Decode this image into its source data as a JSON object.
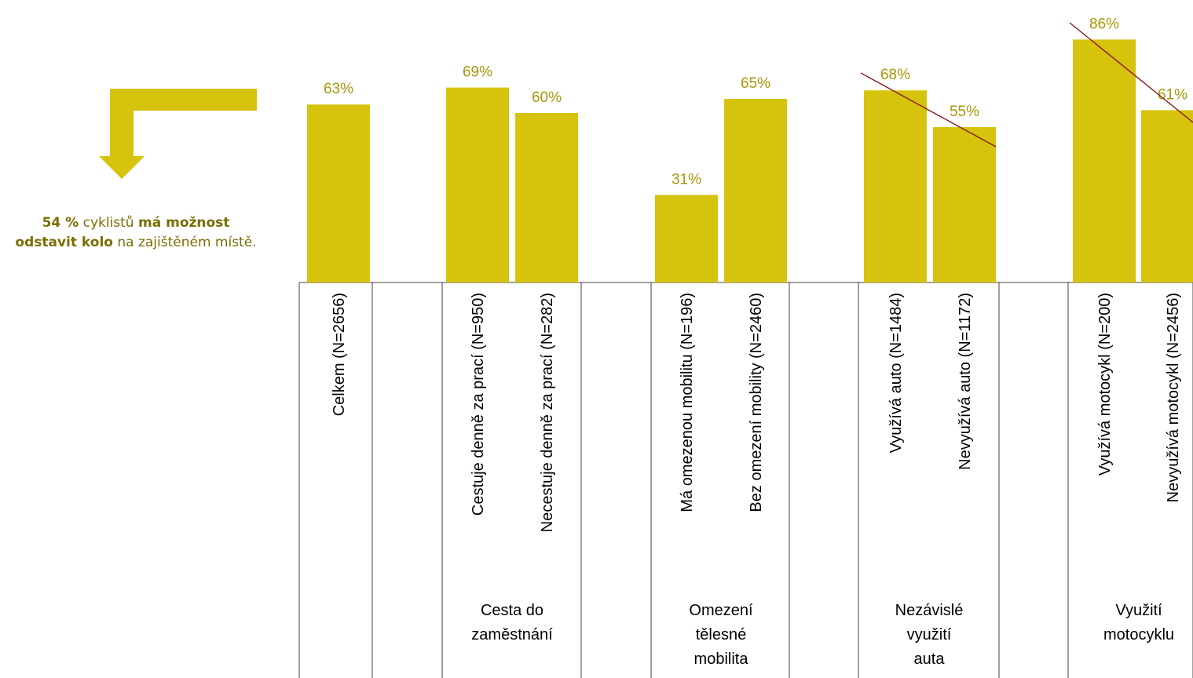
{
  "callout": {
    "part1_bold": "54 %",
    "part2": " cyklistů ",
    "part3_bold": "má možnost odstavit kolo",
    "part4": " na zajištěném místě."
  },
  "colors": {
    "bar": "#d6c30d",
    "label": "#a8960a",
    "callout_text": "#7a6e00",
    "trend": "#8b1a1a",
    "grid": "#404040"
  },
  "chart_data": {
    "type": "bar",
    "ylim": [
      0,
      100
    ],
    "categories": [
      "Celkem (N=2656)",
      "Cestuje denně za prací (N=950)",
      "Necestuje denně za prací (N=282)",
      "Má omezenou mobilitu (N=196)",
      "Bez omezení mobility (N=2460)",
      "Využívá auto (N=1484)",
      "Nevyužívá auto (N=1172)",
      "Využívá motocykl (N=200)",
      "Nevyužívá motocykl (N=2456)"
    ],
    "values": [
      63,
      69,
      60,
      31,
      65,
      68,
      55,
      86,
      61
    ],
    "data_labels": [
      "63%",
      "69%",
      "60%",
      "31%",
      "65%",
      "68%",
      "55%",
      "86%",
      "61%"
    ],
    "groups": [
      {
        "label": "",
        "members": [
          0
        ]
      },
      {
        "label": "Cesta do zaměstnání",
        "members": [
          1,
          2
        ]
      },
      {
        "label": "Omezení tělesné mobilita",
        "members": [
          3,
          4
        ]
      },
      {
        "label": "Nezávislé využití auta",
        "members": [
          5,
          6
        ]
      },
      {
        "label": "Využití motocyklu",
        "members": [
          7,
          8
        ]
      }
    ],
    "trend_lines": [
      [
        5,
        6
      ],
      [
        7,
        8
      ]
    ]
  }
}
